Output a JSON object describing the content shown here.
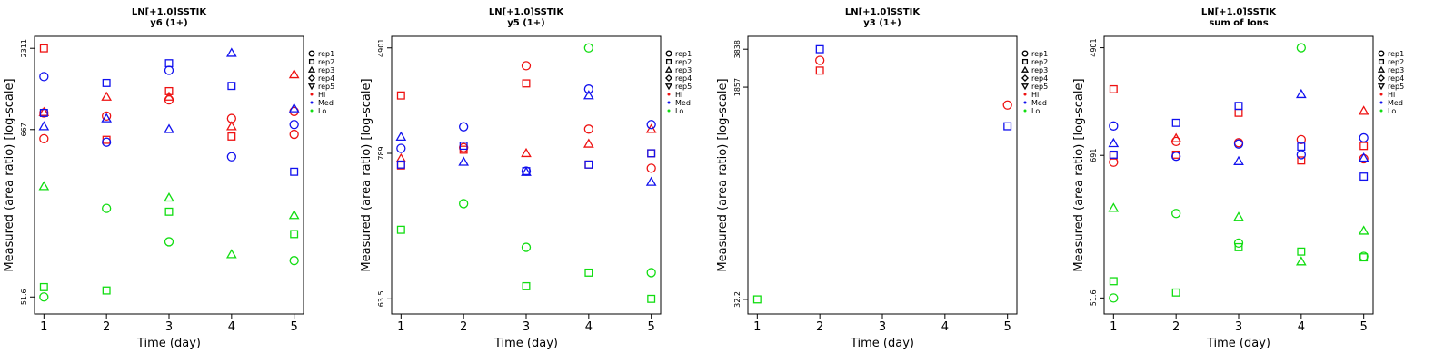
{
  "figure": {
    "ylabel": "Measured (area ratio) [log-scale]",
    "xlabel": "Time (day)"
  },
  "legend": {
    "reps": [
      {
        "label": "rep1",
        "shape": "circle"
      },
      {
        "label": "rep2",
        "shape": "square"
      },
      {
        "label": "rep3",
        "shape": "triangle"
      },
      {
        "label": "rep4",
        "shape": "diamond"
      },
      {
        "label": "rep5",
        "shape": "triangle-down"
      }
    ],
    "levels": [
      {
        "label": "Hi",
        "color": "#ee1111"
      },
      {
        "label": "Med",
        "color": "#1111ee"
      },
      {
        "label": "Lo",
        "color": "#11dd11"
      }
    ]
  },
  "colors": {
    "Hi": "#ee1111",
    "Med": "#1111ee",
    "Lo": "#11dd11"
  },
  "chart_data": [
    {
      "type": "scatter",
      "title": "LN[+1.0]SSTIK",
      "subtitle": "y6 (1+)",
      "xlabel": "Time (day)",
      "ylabel": "Measured (area ratio) [log-scale]",
      "yscale": "log",
      "yticks": [
        "51.6",
        "667",
        "2311"
      ],
      "ylim": [
        47,
        2450
      ],
      "xticks": [
        "1",
        "2",
        "3",
        "4",
        "5"
      ],
      "xlim": [
        0.85,
        5.15
      ],
      "points": [
        {
          "x": 1,
          "y": 2311,
          "rep": "rep2",
          "level": "Hi"
        },
        {
          "x": 1,
          "y": 860,
          "rep": "rep1",
          "level": "Hi"
        },
        {
          "x": 1,
          "y": 870,
          "rep": "rep3",
          "level": "Hi"
        },
        {
          "x": 1,
          "y": 580,
          "rep": "rep1",
          "level": "Hi"
        },
        {
          "x": 1,
          "y": 1500,
          "rep": "rep1",
          "level": "Med"
        },
        {
          "x": 1,
          "y": 860,
          "rep": "rep2",
          "level": "Med"
        },
        {
          "x": 1,
          "y": 700,
          "rep": "rep3",
          "level": "Med"
        },
        {
          "x": 1,
          "y": 280,
          "rep": "rep3",
          "level": "Lo"
        },
        {
          "x": 1,
          "y": 60,
          "rep": "rep2",
          "level": "Lo"
        },
        {
          "x": 1,
          "y": 51.6,
          "rep": "rep1",
          "level": "Lo"
        },
        {
          "x": 2,
          "y": 1100,
          "rep": "rep3",
          "level": "Hi"
        },
        {
          "x": 2,
          "y": 820,
          "rep": "rep1",
          "level": "Hi"
        },
        {
          "x": 2,
          "y": 570,
          "rep": "rep2",
          "level": "Hi"
        },
        {
          "x": 2,
          "y": 1360,
          "rep": "rep2",
          "level": "Med"
        },
        {
          "x": 2,
          "y": 790,
          "rep": "rep3",
          "level": "Med"
        },
        {
          "x": 2,
          "y": 550,
          "rep": "rep1",
          "level": "Med"
        },
        {
          "x": 2,
          "y": 200,
          "rep": "rep1",
          "level": "Lo"
        },
        {
          "x": 2,
          "y": 57,
          "rep": "rep2",
          "level": "Lo"
        },
        {
          "x": 3,
          "y": 1200,
          "rep": "rep2",
          "level": "Hi"
        },
        {
          "x": 3,
          "y": 1100,
          "rep": "rep3",
          "level": "Hi"
        },
        {
          "x": 3,
          "y": 1050,
          "rep": "rep1",
          "level": "Hi"
        },
        {
          "x": 3,
          "y": 1840,
          "rep": "rep2",
          "level": "Med"
        },
        {
          "x": 3,
          "y": 1650,
          "rep": "rep1",
          "level": "Med"
        },
        {
          "x": 3,
          "y": 670,
          "rep": "rep3",
          "level": "Med"
        },
        {
          "x": 3,
          "y": 235,
          "rep": "rep3",
          "level": "Lo"
        },
        {
          "x": 3,
          "y": 190,
          "rep": "rep2",
          "level": "Lo"
        },
        {
          "x": 3,
          "y": 120,
          "rep": "rep1",
          "level": "Lo"
        },
        {
          "x": 4,
          "y": 790,
          "rep": "rep1",
          "level": "Hi"
        },
        {
          "x": 4,
          "y": 700,
          "rep": "rep3",
          "level": "Hi"
        },
        {
          "x": 4,
          "y": 600,
          "rep": "rep2",
          "level": "Hi"
        },
        {
          "x": 4,
          "y": 2150,
          "rep": "rep3",
          "level": "Med"
        },
        {
          "x": 4,
          "y": 1300,
          "rep": "rep2",
          "level": "Med"
        },
        {
          "x": 4,
          "y": 440,
          "rep": "rep1",
          "level": "Med"
        },
        {
          "x": 4,
          "y": 99,
          "rep": "rep3",
          "level": "Lo"
        },
        {
          "x": 5,
          "y": 1550,
          "rep": "rep3",
          "level": "Hi"
        },
        {
          "x": 5,
          "y": 880,
          "rep": "rep1",
          "level": "Hi"
        },
        {
          "x": 5,
          "y": 620,
          "rep": "rep1",
          "level": "Hi"
        },
        {
          "x": 5,
          "y": 920,
          "rep": "rep3",
          "level": "Med"
        },
        {
          "x": 5,
          "y": 720,
          "rep": "rep1",
          "level": "Med"
        },
        {
          "x": 5,
          "y": 350,
          "rep": "rep2",
          "level": "Med"
        },
        {
          "x": 5,
          "y": 180,
          "rep": "rep3",
          "level": "Lo"
        },
        {
          "x": 5,
          "y": 135,
          "rep": "rep2",
          "level": "Lo"
        },
        {
          "x": 5,
          "y": 90,
          "rep": "rep1",
          "level": "Lo"
        }
      ]
    },
    {
      "type": "scatter",
      "title": "LN[+1.0]SSTIK",
      "subtitle": "y5 (1+)",
      "xlabel": "Time (day)",
      "ylabel": "Measured (area ratio) [log-scale]",
      "yscale": "log",
      "yticks": [
        "63.5",
        "789",
        "4901"
      ],
      "ylim": [
        59,
        5200
      ],
      "xticks": [
        "1",
        "2",
        "3",
        "4",
        "5"
      ],
      "xlim": [
        0.85,
        5.15
      ],
      "points": [
        {
          "x": 1,
          "y": 2150,
          "rep": "rep2",
          "level": "Hi"
        },
        {
          "x": 1,
          "y": 720,
          "rep": "rep3",
          "level": "Hi"
        },
        {
          "x": 1,
          "y": 640,
          "rep": "rep2",
          "level": "Hi"
        },
        {
          "x": 1,
          "y": 1050,
          "rep": "rep3",
          "level": "Med"
        },
        {
          "x": 1,
          "y": 860,
          "rep": "rep1",
          "level": "Med"
        },
        {
          "x": 1,
          "y": 650,
          "rep": "rep2",
          "level": "Med"
        },
        {
          "x": 1,
          "y": 210,
          "rep": "rep2",
          "level": "Lo"
        },
        {
          "x": 2,
          "y": 870,
          "rep": "rep1",
          "level": "Hi"
        },
        {
          "x": 2,
          "y": 840,
          "rep": "rep2",
          "level": "Hi"
        },
        {
          "x": 2,
          "y": 1250,
          "rep": "rep1",
          "level": "Med"
        },
        {
          "x": 2,
          "y": 900,
          "rep": "rep2",
          "level": "Med"
        },
        {
          "x": 2,
          "y": 680,
          "rep": "rep3",
          "level": "Med"
        },
        {
          "x": 2,
          "y": 330,
          "rep": "rep1",
          "level": "Lo"
        },
        {
          "x": 3,
          "y": 3600,
          "rep": "rep1",
          "level": "Hi"
        },
        {
          "x": 3,
          "y": 2650,
          "rep": "rep2",
          "level": "Hi"
        },
        {
          "x": 3,
          "y": 790,
          "rep": "rep3",
          "level": "Hi"
        },
        {
          "x": 3,
          "y": 580,
          "rep": "rep1",
          "level": "Med"
        },
        {
          "x": 3,
          "y": 580,
          "rep": "rep2",
          "level": "Med"
        },
        {
          "x": 3,
          "y": 570,
          "rep": "rep3",
          "level": "Med"
        },
        {
          "x": 3,
          "y": 155,
          "rep": "rep1",
          "level": "Lo"
        },
        {
          "x": 3,
          "y": 79,
          "rep": "rep2",
          "level": "Lo"
        },
        {
          "x": 4,
          "y": 1200,
          "rep": "rep1",
          "level": "Hi"
        },
        {
          "x": 4,
          "y": 930,
          "rep": "rep3",
          "level": "Hi"
        },
        {
          "x": 4,
          "y": 650,
          "rep": "rep2",
          "level": "Hi"
        },
        {
          "x": 4,
          "y": 2400,
          "rep": "rep1",
          "level": "Med"
        },
        {
          "x": 4,
          "y": 2150,
          "rep": "rep3",
          "level": "Med"
        },
        {
          "x": 4,
          "y": 650,
          "rep": "rep2",
          "level": "Med"
        },
        {
          "x": 4,
          "y": 4901,
          "rep": "rep1",
          "level": "Lo"
        },
        {
          "x": 4,
          "y": 100,
          "rep": "rep2",
          "level": "Lo"
        },
        {
          "x": 5,
          "y": 1200,
          "rep": "rep3",
          "level": "Hi"
        },
        {
          "x": 5,
          "y": 790,
          "rep": "rep2",
          "level": "Hi"
        },
        {
          "x": 5,
          "y": 610,
          "rep": "rep1",
          "level": "Hi"
        },
        {
          "x": 5,
          "y": 1300,
          "rep": "rep1",
          "level": "Med"
        },
        {
          "x": 5,
          "y": 790,
          "rep": "rep2",
          "level": "Med"
        },
        {
          "x": 5,
          "y": 480,
          "rep": "rep3",
          "level": "Med"
        },
        {
          "x": 5,
          "y": 100,
          "rep": "rep1",
          "level": "Lo"
        },
        {
          "x": 5,
          "y": 63.5,
          "rep": "rep2",
          "level": "Lo"
        }
      ]
    },
    {
      "type": "scatter",
      "title": "LN[+1.0]SSTIK",
      "subtitle": "y3 (1+)",
      "xlabel": "Time (day)",
      "ylabel": "Measured (area ratio) [log-scale]",
      "yscale": "log",
      "yticks": [
        "32.2",
        "1857",
        "3838"
      ],
      "ylim": [
        30,
        4200
      ],
      "xticks": [
        "1",
        "2",
        "3",
        "4",
        "5"
      ],
      "xlim": [
        0.85,
        5.15
      ],
      "points": [
        {
          "x": 1,
          "y": 32.2,
          "rep": "rep2",
          "level": "Lo"
        },
        {
          "x": 2,
          "y": 3838,
          "rep": "rep2",
          "level": "Med"
        },
        {
          "x": 2,
          "y": 3100,
          "rep": "rep1",
          "level": "Hi"
        },
        {
          "x": 2,
          "y": 2550,
          "rep": "rep2",
          "level": "Hi"
        },
        {
          "x": 5,
          "y": 1320,
          "rep": "rep1",
          "level": "Hi"
        },
        {
          "x": 5,
          "y": 880,
          "rep": "rep2",
          "level": "Med"
        }
      ]
    },
    {
      "type": "scatter",
      "title": "LN[+1.0]SSTIK",
      "subtitle": "sum of Ions",
      "xlabel": "Time (day)",
      "ylabel": "Measured (area ratio) [log-scale]",
      "yscale": "log",
      "yticks": [
        "51.6",
        "691",
        "4901"
      ],
      "ylim": [
        47,
        5200
      ],
      "xticks": [
        "1",
        "2",
        "3",
        "4",
        "5"
      ],
      "xlim": [
        0.85,
        5.15
      ],
      "points": [
        {
          "x": 1,
          "y": 2300,
          "rep": "rep2",
          "level": "Hi"
        },
        {
          "x": 1,
          "y": 690,
          "rep": "rep2",
          "level": "Hi"
        },
        {
          "x": 1,
          "y": 610,
          "rep": "rep1",
          "level": "Hi"
        },
        {
          "x": 1,
          "y": 1180,
          "rep": "rep1",
          "level": "Med"
        },
        {
          "x": 1,
          "y": 860,
          "rep": "rep3",
          "level": "Med"
        },
        {
          "x": 1,
          "y": 700,
          "rep": "rep2",
          "level": "Med"
        },
        {
          "x": 1,
          "y": 265,
          "rep": "rep3",
          "level": "Lo"
        },
        {
          "x": 1,
          "y": 70,
          "rep": "rep2",
          "level": "Lo"
        },
        {
          "x": 1,
          "y": 51.6,
          "rep": "rep1",
          "level": "Lo"
        },
        {
          "x": 2,
          "y": 940,
          "rep": "rep3",
          "level": "Hi"
        },
        {
          "x": 2,
          "y": 890,
          "rep": "rep1",
          "level": "Hi"
        },
        {
          "x": 2,
          "y": 700,
          "rep": "rep2",
          "level": "Hi"
        },
        {
          "x": 2,
          "y": 1250,
          "rep": "rep2",
          "level": "Med"
        },
        {
          "x": 2,
          "y": 680,
          "rep": "rep1",
          "level": "Med"
        },
        {
          "x": 2,
          "y": 240,
          "rep": "rep1",
          "level": "Lo"
        },
        {
          "x": 2,
          "y": 57,
          "rep": "rep2",
          "level": "Lo"
        },
        {
          "x": 3,
          "y": 1500,
          "rep": "rep2",
          "level": "Hi"
        },
        {
          "x": 3,
          "y": 870,
          "rep": "rep1",
          "level": "Hi"
        },
        {
          "x": 3,
          "y": 1700,
          "rep": "rep2",
          "level": "Med"
        },
        {
          "x": 3,
          "y": 850,
          "rep": "rep1",
          "level": "Med"
        },
        {
          "x": 3,
          "y": 620,
          "rep": "rep3",
          "level": "Med"
        },
        {
          "x": 3,
          "y": 225,
          "rep": "rep3",
          "level": "Lo"
        },
        {
          "x": 3,
          "y": 140,
          "rep": "rep1",
          "level": "Lo"
        },
        {
          "x": 3,
          "y": 130,
          "rep": "rep2",
          "level": "Lo"
        },
        {
          "x": 4,
          "y": 920,
          "rep": "rep1",
          "level": "Hi"
        },
        {
          "x": 4,
          "y": 630,
          "rep": "rep2",
          "level": "Hi"
        },
        {
          "x": 4,
          "y": 2100,
          "rep": "rep3",
          "level": "Med"
        },
        {
          "x": 4,
          "y": 810,
          "rep": "rep2",
          "level": "Med"
        },
        {
          "x": 4,
          "y": 700,
          "rep": "rep1",
          "level": "Med"
        },
        {
          "x": 4,
          "y": 4901,
          "rep": "rep1",
          "level": "Lo"
        },
        {
          "x": 4,
          "y": 120,
          "rep": "rep2",
          "level": "Lo"
        },
        {
          "x": 4,
          "y": 100,
          "rep": "rep3",
          "level": "Lo"
        },
        {
          "x": 5,
          "y": 1550,
          "rep": "rep3",
          "level": "Hi"
        },
        {
          "x": 5,
          "y": 820,
          "rep": "rep2",
          "level": "Hi"
        },
        {
          "x": 5,
          "y": 650,
          "rep": "rep1",
          "level": "Hi"
        },
        {
          "x": 5,
          "y": 950,
          "rep": "rep1",
          "level": "Med"
        },
        {
          "x": 5,
          "y": 660,
          "rep": "rep3",
          "level": "Med"
        },
        {
          "x": 5,
          "y": 470,
          "rep": "rep2",
          "level": "Med"
        },
        {
          "x": 5,
          "y": 175,
          "rep": "rep3",
          "level": "Lo"
        },
        {
          "x": 5,
          "y": 110,
          "rep": "rep1",
          "level": "Lo"
        },
        {
          "x": 5,
          "y": 108,
          "rep": "rep2",
          "level": "Lo"
        }
      ]
    }
  ]
}
